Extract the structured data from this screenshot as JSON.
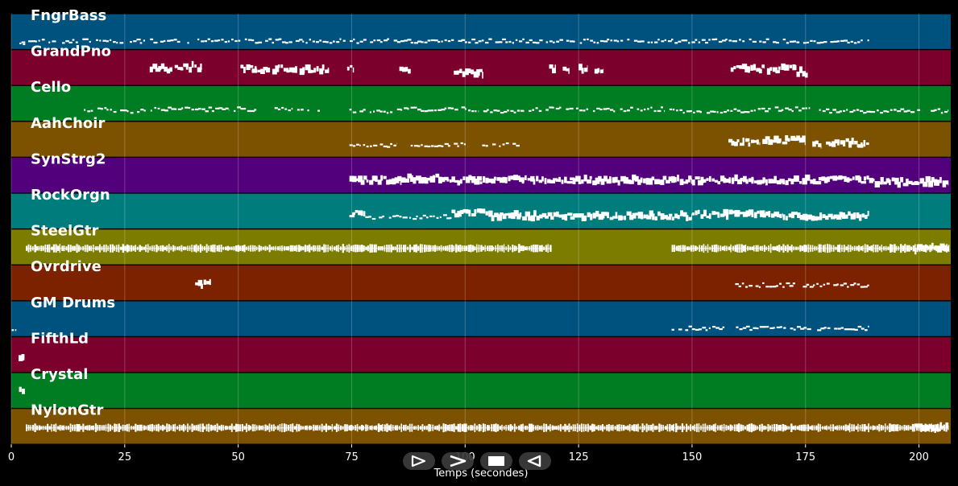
{
  "transport": {
    "buttons": [
      {
        "name": "play-button",
        "icon": "play-icon"
      },
      {
        "name": "fast-forward-button",
        "icon": "fast-forward-icon"
      },
      {
        "name": "stop-button",
        "icon": "stop-icon"
      },
      {
        "name": "rewind-button",
        "icon": "rewind-icon"
      }
    ]
  },
  "chart_data": {
    "type": "piano-roll",
    "title": "",
    "xlabel": "Temps (secondes)",
    "ylabel": "",
    "xlim": [
      0,
      207
    ],
    "x_ticks": [
      0,
      25,
      50,
      75,
      100,
      125,
      150,
      175,
      200
    ],
    "grid": true,
    "tracks": [
      {
        "name": "FngrBass",
        "color": "#00527e",
        "segments": [
          [
            1.5,
            189,
            "dots",
            0.35
          ],
          [
            1.8,
            3.2,
            "dots",
            0.3
          ]
        ]
      },
      {
        "name": "GrandPno",
        "color": "#7c002c",
        "segments": [
          [
            30.5,
            35.5,
            "blocks",
            0.55
          ],
          [
            36,
            42,
            "blocks",
            0.6
          ],
          [
            50.5,
            57,
            "blocks",
            0.55
          ],
          [
            57.5,
            63,
            "blocks",
            0.55
          ],
          [
            63.5,
            70,
            "blocks",
            0.55
          ],
          [
            74,
            75.5,
            "blocks",
            0.55
          ],
          [
            85.5,
            88,
            "blocks",
            0.5
          ],
          [
            97.5,
            104,
            "blocks",
            0.45
          ],
          [
            118.5,
            120,
            "blocks",
            0.55
          ],
          [
            121.5,
            123,
            "blocks",
            0.55
          ],
          [
            125,
            127,
            "blocks",
            0.55
          ],
          [
            128.5,
            130.5,
            "blocks",
            0.55
          ],
          [
            158.5,
            166,
            "blocks",
            0.55
          ],
          [
            166.5,
            173,
            "blocks",
            0.55
          ],
          [
            173,
            175.5,
            "blocks",
            0.45
          ]
        ]
      },
      {
        "name": "Cello",
        "color": "#007c22",
        "segments": [
          [
            16,
            21,
            "dots",
            0.45
          ],
          [
            21,
            31,
            "dots",
            0.4
          ],
          [
            31.5,
            48,
            "dots",
            0.45
          ],
          [
            49,
            54,
            "dots",
            0.45
          ],
          [
            58,
            62,
            "dots",
            0.45
          ],
          [
            63,
            68,
            "dots",
            0.45
          ],
          [
            74.5,
            84,
            "dots",
            0.4
          ],
          [
            85,
            103,
            "dots",
            0.45
          ],
          [
            104,
            113,
            "dots",
            0.4
          ],
          [
            114,
            144,
            "dots",
            0.45
          ],
          [
            145,
            164,
            "dots",
            0.4
          ],
          [
            164.5,
            176,
            "dots",
            0.45
          ],
          [
            176.5,
            206.5,
            "dots",
            0.4
          ]
        ]
      },
      {
        "name": "AahChoir",
        "color": "#7c5200",
        "segments": [
          [
            74.5,
            77,
            "dots",
            0.45
          ],
          [
            77.5,
            85,
            "dots",
            0.45
          ],
          [
            88,
            97,
            "dots",
            0.45
          ],
          [
            97.5,
            100.5,
            "dots",
            0.45
          ],
          [
            103,
            112,
            "dots",
            0.45
          ],
          [
            158,
            165,
            "blocks",
            0.5
          ],
          [
            165.5,
            175,
            "blocks",
            0.55
          ],
          [
            176.5,
            178.5,
            "blocks",
            0.45
          ],
          [
            179.5,
            186.5,
            "blocks",
            0.5
          ],
          [
            186.5,
            189,
            "blocks",
            0.45
          ]
        ]
      },
      {
        "name": "SynStrg2",
        "color": "#52007c",
        "segments": [
          [
            74.5,
            86,
            "blocks",
            0.45
          ],
          [
            86,
            97,
            "blocks",
            0.5
          ],
          [
            97,
            110,
            "blocks",
            0.45
          ],
          [
            110,
            150,
            "blocks",
            0.45
          ],
          [
            150,
            176,
            "blocks",
            0.45
          ],
          [
            176,
            189,
            "blocks",
            0.45
          ],
          [
            189,
            206.5,
            "blocks",
            0.4
          ]
        ]
      },
      {
        "name": "RockOrgn",
        "color": "#007c7c",
        "segments": [
          [
            74.5,
            78,
            "blocks",
            0.5
          ],
          [
            78,
            97,
            "dots",
            0.45
          ],
          [
            97,
            104.5,
            "blocks",
            0.55
          ],
          [
            104.5,
            150,
            "blocks",
            0.45
          ],
          [
            150,
            170,
            "blocks",
            0.5
          ],
          [
            170,
            189,
            "blocks",
            0.45
          ]
        ]
      },
      {
        "name": "SteelGtr",
        "color": "#7c7c00",
        "segments": [
          [
            3.2,
            119,
            "strum",
            0.55
          ],
          [
            145.5,
            206.5,
            "strum",
            0.55
          ],
          [
            199,
            206.5,
            "blocks",
            0.55
          ]
        ]
      },
      {
        "name": "Ovrdrive",
        "color": "#7c2200",
        "segments": [
          [
            40.5,
            44,
            "blocks",
            0.55
          ],
          [
            159.5,
            189,
            "dots",
            0.55
          ]
        ]
      },
      {
        "name": "GM Drums",
        "color": "#00527e",
        "segments": [
          [
            0.1,
            1.1,
            "dots",
            0.35
          ],
          [
            145.5,
            189,
            "dots",
            0.35
          ]
        ]
      },
      {
        "name": "FifthLd",
        "color": "#7c002c",
        "segments": [
          [
            1.6,
            2.9,
            "blocks",
            0.55
          ]
        ]
      },
      {
        "name": "Crystal",
        "color": "#007c22",
        "segments": [
          [
            1.7,
            3,
            "blocks",
            0.55
          ]
        ]
      },
      {
        "name": "NylonGtr",
        "color": "#7c5200",
        "segments": [
          [
            3.2,
            206.5,
            "strum",
            0.55
          ],
          [
            199,
            206.5,
            "blocks",
            0.55
          ]
        ]
      }
    ]
  }
}
